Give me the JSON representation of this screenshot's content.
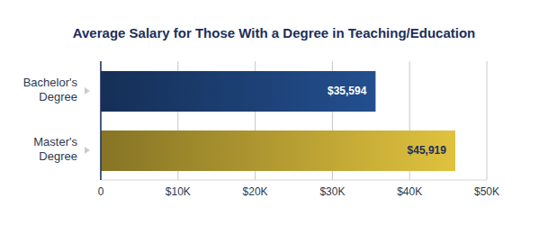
{
  "chart_data": {
    "type": "bar",
    "title": "Average Salary for Those With a Degree in Teaching/Education",
    "orientation": "horizontal",
    "categories": [
      "Bachelor's Degree",
      "Master's Degree"
    ],
    "values": [
      35594,
      45919
    ],
    "value_labels": [
      "$35,594",
      "$45,919"
    ],
    "colors": [
      "#234f8f",
      "#e0c23e"
    ],
    "xlim": [
      0,
      50000
    ],
    "xticks": [
      0,
      {
        "value": 10000,
        "label": "$10K"
      },
      {
        "value": 20000,
        "label": "$20K"
      },
      {
        "value": 30000,
        "label": "$30K"
      },
      {
        "value": 40000,
        "label": "$40K"
      },
      {
        "value": 50000,
        "label": "$50K"
      }
    ],
    "grid": true,
    "data_labels": true
  }
}
